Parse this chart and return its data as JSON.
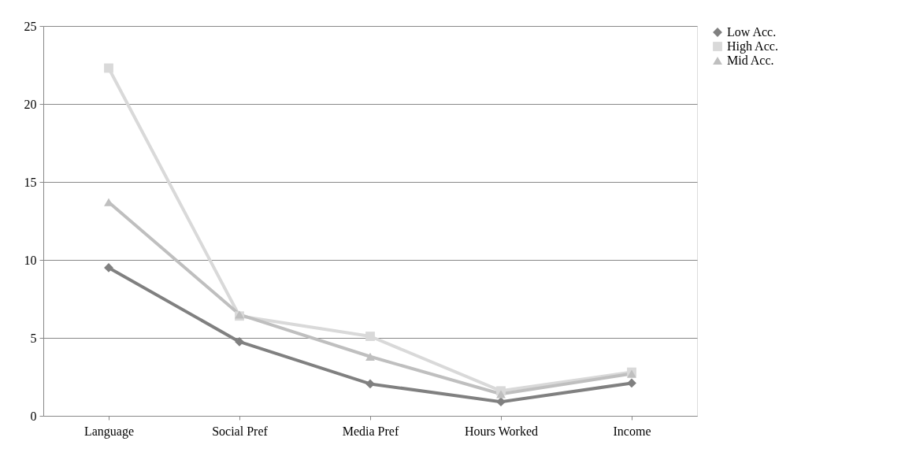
{
  "chart_data": {
    "type": "line",
    "categories": [
      "Language",
      "Social Pref",
      "Media Pref",
      "Hours Worked",
      "Income"
    ],
    "series": [
      {
        "name": "Low Acc.",
        "color": "#808080",
        "marker": "diamond",
        "values": [
          9.5,
          4.75,
          2.05,
          0.9,
          2.1
        ]
      },
      {
        "name": "High Acc.",
        "color": "#d9d9d9",
        "marker": "square",
        "values": [
          22.3,
          6.4,
          5.1,
          1.6,
          2.8
        ]
      },
      {
        "name": "Mid Acc.",
        "color": "#bfbfbf",
        "marker": "triangle",
        "values": [
          13.7,
          6.5,
          3.8,
          1.4,
          2.7
        ]
      }
    ],
    "ylim": [
      0,
      25
    ],
    "yticks": [
      0,
      5,
      10,
      15,
      20,
      25
    ],
    "grid": "y",
    "legend": "right",
    "line_style": "solid"
  }
}
